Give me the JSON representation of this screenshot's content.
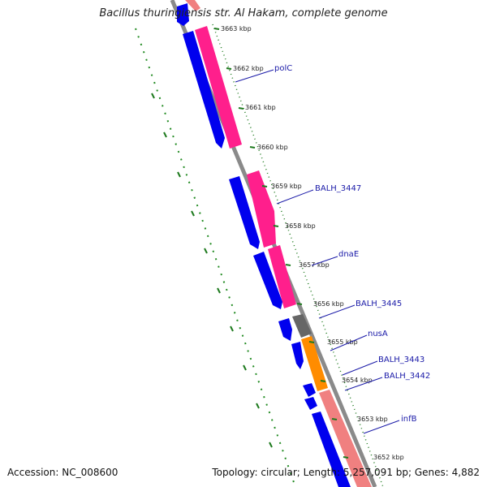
{
  "title": "Bacillus thuringiensis str. Al Hakam, complete genome",
  "footer": {
    "accession": "Accession: NC_008600",
    "summary": "Topology: circular; Length: 5,257,091 bp; Genes: 4,882"
  },
  "colors": {
    "backbone": "#888888",
    "forward_cds": "#0000ee",
    "reverse_cds": "#ff1f8c",
    "rna": "#ff8c00",
    "pseudo": "#666666",
    "reverse_light": "#f08080",
    "tick": "#006400",
    "label": "#1a1aa8"
  },
  "axis_ticks": [
    "3663 kbp",
    "3662 kbp",
    "3661 kbp",
    "3660 kbp",
    "3659 kbp",
    "3658 kbp",
    "3657 kbp",
    "3656 kbp",
    "3655 kbp",
    "3654 kbp",
    "3653 kbp",
    "3652 kbp"
  ],
  "gene_labels": [
    "polC",
    "BALH_3447",
    "dnaE",
    "BALH_3445",
    "nusA",
    "BALH_3443",
    "BALH_3442",
    "infB"
  ]
}
